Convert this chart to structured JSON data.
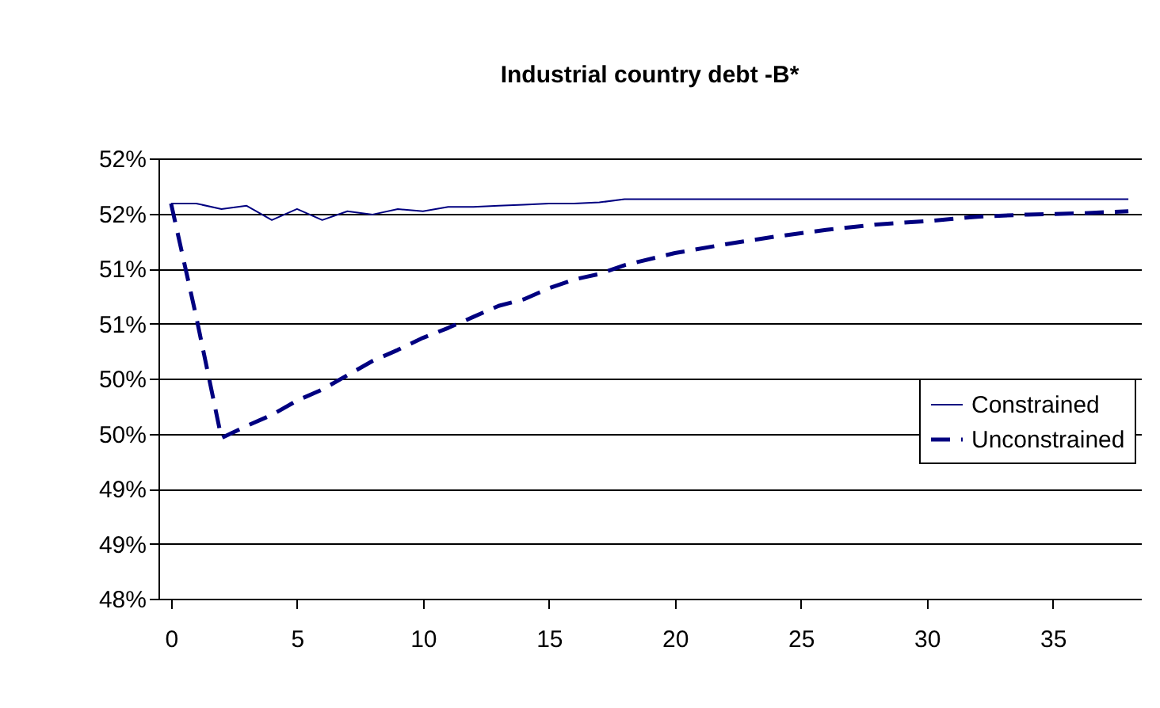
{
  "chart_data": {
    "type": "line",
    "title": "Industrial country debt -B*",
    "xlim": [
      -0.5,
      38.5
    ],
    "xticks": [
      0,
      5,
      10,
      15,
      20,
      25,
      30,
      35
    ],
    "ylim": [
      48,
      52
    ],
    "yticks": [
      {
        "value": 48,
        "label": "48%"
      },
      {
        "value": 48.5,
        "label": "49%"
      },
      {
        "value": 49,
        "label": "49%"
      },
      {
        "value": 49.5,
        "label": "50%"
      },
      {
        "value": 50,
        "label": "50%"
      },
      {
        "value": 50.5,
        "label": "51%"
      },
      {
        "value": 51,
        "label": "51%"
      },
      {
        "value": 51.5,
        "label": "52%"
      },
      {
        "value": 52,
        "label": "52%"
      }
    ],
    "grid": "y",
    "legend": "right",
    "series": [
      {
        "name": "Constrained",
        "color": "#000080",
        "line_style": "solid",
        "x": [
          0,
          1,
          2,
          3,
          4,
          5,
          6,
          7,
          8,
          9,
          10,
          11,
          12,
          13,
          14,
          15,
          16,
          17,
          18,
          38
        ],
        "values": [
          51.59,
          51.59,
          51.54,
          51.57,
          51.44,
          51.54,
          51.44,
          51.52,
          51.49,
          51.54,
          51.52,
          51.56,
          51.56,
          51.57,
          51.58,
          51.59,
          51.59,
          51.6,
          51.63,
          51.63
        ]
      },
      {
        "name": "Unconstrained",
        "color": "#000080",
        "line_style": "dashed",
        "x": [
          0,
          1,
          2,
          3,
          4,
          5,
          6,
          7,
          8,
          9,
          10,
          11,
          12,
          13,
          14,
          15,
          16,
          17,
          18,
          20,
          22,
          24,
          26,
          28,
          30,
          32,
          34,
          36,
          38
        ],
        "values": [
          51.59,
          50.56,
          49.46,
          49.57,
          49.67,
          49.8,
          49.9,
          50.03,
          50.16,
          50.26,
          50.37,
          50.46,
          50.56,
          50.66,
          50.72,
          50.82,
          50.9,
          50.95,
          51.03,
          51.14,
          51.22,
          51.29,
          51.35,
          51.4,
          51.43,
          51.47,
          51.49,
          51.5,
          51.52
        ]
      }
    ]
  }
}
